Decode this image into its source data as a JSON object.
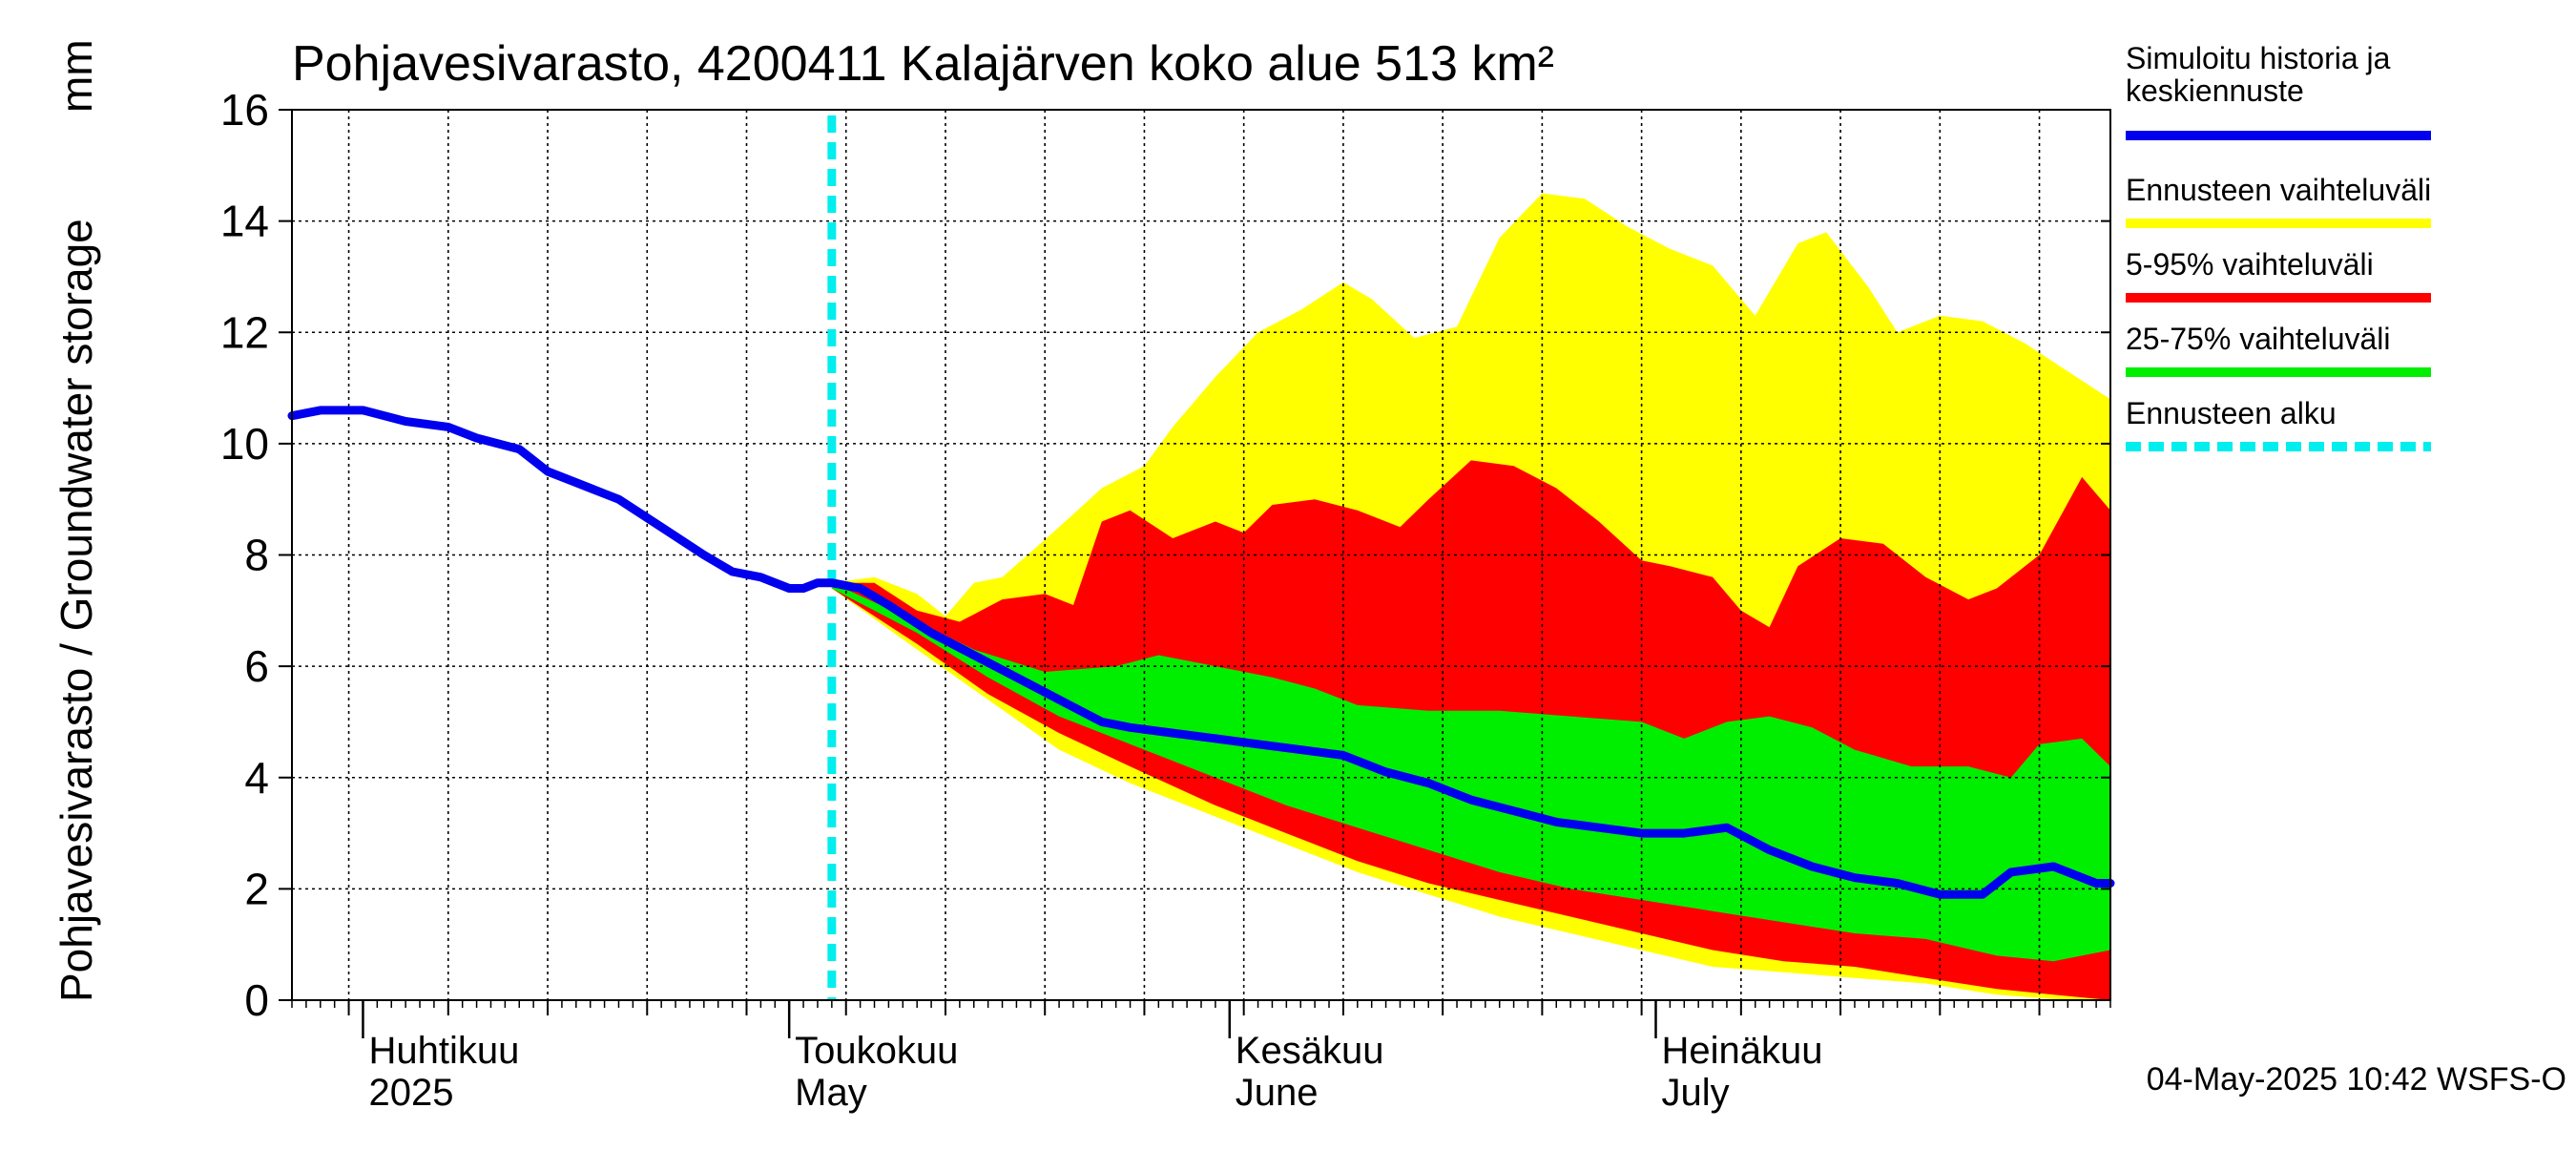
{
  "chart_data": {
    "type": "area",
    "title": "Pohjavesivarasto, 4200411 Kalajärven koko alue 513 km²",
    "ylabel": "Pohjavesivarasto / Groundwater storage",
    "yunit": "mm",
    "xlim": [
      "2025-03-27",
      "2025-08-02"
    ],
    "ylim": [
      0,
      16
    ],
    "yticks": [
      0,
      2,
      4,
      6,
      8,
      10,
      12,
      14,
      16
    ],
    "grid": true,
    "legend_position": "right",
    "month_labels": [
      {
        "date": "2025-04-01",
        "fi": "Huhtikuu",
        "en": "2025"
      },
      {
        "date": "2025-05-01",
        "fi": "Toukokuu",
        "en": "May"
      },
      {
        "date": "2025-06-01",
        "fi": "Kesäkuu",
        "en": "June"
      },
      {
        "date": "2025-07-01",
        "fi": "Heinäkuu",
        "en": "July"
      }
    ],
    "forecast_start": "2025-05-04",
    "timestamp": "04-May-2025 10:42 WSFS-O",
    "legend": [
      {
        "key": "median",
        "label": "Simuloitu historia ja keskiennuste",
        "color": "#0000ee",
        "style": "solid"
      },
      {
        "key": "range",
        "label": "Ennusteen vaihteluväli",
        "color": "#ffff00",
        "style": "solid"
      },
      {
        "key": "p5_95",
        "label": "5-95% vaihteluväli",
        "color": "#ff0000",
        "style": "solid"
      },
      {
        "key": "p25_75",
        "label": "25-75% vaihteluväli",
        "color": "#00ee00",
        "style": "solid"
      },
      {
        "key": "forecast_start",
        "label": "Ennusteen alku",
        "color": "#00eeee",
        "style": "dashed"
      }
    ],
    "bands": {
      "range": {
        "color": "#ffff00",
        "upper": [
          [
            "2025-05-04",
            7.5
          ],
          [
            "2025-05-07",
            7.6
          ],
          [
            "2025-05-10",
            7.3
          ],
          [
            "2025-05-12",
            6.9
          ],
          [
            "2025-05-14",
            7.5
          ],
          [
            "2025-05-16",
            7.6
          ],
          [
            "2025-05-20",
            8.5
          ],
          [
            "2025-05-23",
            9.2
          ],
          [
            "2025-05-26",
            9.6
          ],
          [
            "2025-05-28",
            10.3
          ],
          [
            "2025-05-31",
            11.2
          ],
          [
            "2025-06-03",
            12.0
          ],
          [
            "2025-06-06",
            12.4
          ],
          [
            "2025-06-09",
            12.9
          ],
          [
            "2025-06-11",
            12.6
          ],
          [
            "2025-06-14",
            11.9
          ],
          [
            "2025-06-17",
            12.1
          ],
          [
            "2025-06-20",
            13.7
          ],
          [
            "2025-06-23",
            14.5
          ],
          [
            "2025-06-26",
            14.4
          ],
          [
            "2025-06-29",
            13.9
          ],
          [
            "2025-07-02",
            13.5
          ],
          [
            "2025-07-05",
            13.2
          ],
          [
            "2025-07-08",
            12.3
          ],
          [
            "2025-07-11",
            13.6
          ],
          [
            "2025-07-13",
            13.8
          ],
          [
            "2025-07-16",
            12.8
          ],
          [
            "2025-07-18",
            12.0
          ],
          [
            "2025-07-21",
            12.3
          ],
          [
            "2025-07-24",
            12.2
          ],
          [
            "2025-07-27",
            11.8
          ],
          [
            "2025-07-30",
            11.3
          ],
          [
            "2025-08-02",
            10.8
          ]
        ],
        "lower": [
          [
            "2025-05-04",
            7.4
          ],
          [
            "2025-05-10",
            6.3
          ],
          [
            "2025-05-15",
            5.4
          ],
          [
            "2025-05-20",
            4.5
          ],
          [
            "2025-05-25",
            3.9
          ],
          [
            "2025-05-31",
            3.3
          ],
          [
            "2025-06-05",
            2.8
          ],
          [
            "2025-06-10",
            2.3
          ],
          [
            "2025-06-15",
            1.9
          ],
          [
            "2025-06-20",
            1.5
          ],
          [
            "2025-06-25",
            1.2
          ],
          [
            "2025-06-30",
            0.9
          ],
          [
            "2025-07-05",
            0.6
          ],
          [
            "2025-07-10",
            0.5
          ],
          [
            "2025-07-15",
            0.4
          ],
          [
            "2025-07-20",
            0.3
          ],
          [
            "2025-07-25",
            0.1
          ],
          [
            "2025-07-30",
            0.0
          ],
          [
            "2025-08-02",
            0.0
          ]
        ]
      },
      "p5_95": {
        "color": "#ff0000",
        "upper": [
          [
            "2025-05-04",
            7.5
          ],
          [
            "2025-05-07",
            7.5
          ],
          [
            "2025-05-10",
            7.0
          ],
          [
            "2025-05-13",
            6.8
          ],
          [
            "2025-05-16",
            7.2
          ],
          [
            "2025-05-19",
            7.3
          ],
          [
            "2025-05-21",
            7.1
          ],
          [
            "2025-05-23",
            8.6
          ],
          [
            "2025-05-25",
            8.8
          ],
          [
            "2025-05-28",
            8.3
          ],
          [
            "2025-05-31",
            8.6
          ],
          [
            "2025-06-02",
            8.4
          ],
          [
            "2025-06-04",
            8.9
          ],
          [
            "2025-06-07",
            9.0
          ],
          [
            "2025-06-10",
            8.8
          ],
          [
            "2025-06-13",
            8.5
          ],
          [
            "2025-06-15",
            9.0
          ],
          [
            "2025-06-18",
            9.7
          ],
          [
            "2025-06-21",
            9.6
          ],
          [
            "2025-06-24",
            9.2
          ],
          [
            "2025-06-27",
            8.6
          ],
          [
            "2025-06-30",
            7.9
          ],
          [
            "2025-07-02",
            7.8
          ],
          [
            "2025-07-05",
            7.6
          ],
          [
            "2025-07-07",
            7.0
          ],
          [
            "2025-07-09",
            6.7
          ],
          [
            "2025-07-11",
            7.8
          ],
          [
            "2025-07-14",
            8.3
          ],
          [
            "2025-07-17",
            8.2
          ],
          [
            "2025-07-20",
            7.6
          ],
          [
            "2025-07-23",
            7.2
          ],
          [
            "2025-07-25",
            7.4
          ],
          [
            "2025-07-28",
            8.0
          ],
          [
            "2025-07-31",
            9.4
          ],
          [
            "2025-08-02",
            8.8
          ]
        ],
        "lower": [
          [
            "2025-05-04",
            7.4
          ],
          [
            "2025-05-10",
            6.4
          ],
          [
            "2025-05-15",
            5.5
          ],
          [
            "2025-05-20",
            4.8
          ],
          [
            "2025-05-25",
            4.2
          ],
          [
            "2025-05-31",
            3.5
          ],
          [
            "2025-06-05",
            3.0
          ],
          [
            "2025-06-10",
            2.5
          ],
          [
            "2025-06-15",
            2.1
          ],
          [
            "2025-06-20",
            1.8
          ],
          [
            "2025-06-25",
            1.5
          ],
          [
            "2025-06-30",
            1.2
          ],
          [
            "2025-07-05",
            0.9
          ],
          [
            "2025-07-10",
            0.7
          ],
          [
            "2025-07-15",
            0.6
          ],
          [
            "2025-07-20",
            0.4
          ],
          [
            "2025-07-25",
            0.2
          ],
          [
            "2025-07-29",
            0.1
          ],
          [
            "2025-08-02",
            0.0
          ]
        ]
      },
      "p25_75": {
        "color": "#00ee00",
        "upper": [
          [
            "2025-05-04",
            7.5
          ],
          [
            "2025-05-10",
            6.8
          ],
          [
            "2025-05-14",
            6.3
          ],
          [
            "2025-05-19",
            5.9
          ],
          [
            "2025-05-24",
            6.0
          ],
          [
            "2025-05-27",
            6.2
          ],
          [
            "2025-05-31",
            6.0
          ],
          [
            "2025-06-04",
            5.8
          ],
          [
            "2025-06-07",
            5.6
          ],
          [
            "2025-06-10",
            5.3
          ],
          [
            "2025-06-15",
            5.2
          ],
          [
            "2025-06-20",
            5.2
          ],
          [
            "2025-06-25",
            5.1
          ],
          [
            "2025-06-30",
            5.0
          ],
          [
            "2025-07-03",
            4.7
          ],
          [
            "2025-07-06",
            5.0
          ],
          [
            "2025-07-09",
            5.1
          ],
          [
            "2025-07-12",
            4.9
          ],
          [
            "2025-07-15",
            4.5
          ],
          [
            "2025-07-19",
            4.2
          ],
          [
            "2025-07-23",
            4.2
          ],
          [
            "2025-07-26",
            4.0
          ],
          [
            "2025-07-28",
            4.6
          ],
          [
            "2025-07-31",
            4.7
          ],
          [
            "2025-08-02",
            4.2
          ]
        ],
        "lower": [
          [
            "2025-05-04",
            7.4
          ],
          [
            "2025-05-10",
            6.6
          ],
          [
            "2025-05-15",
            5.8
          ],
          [
            "2025-05-20",
            5.1
          ],
          [
            "2025-05-25",
            4.6
          ],
          [
            "2025-05-31",
            4.0
          ],
          [
            "2025-06-05",
            3.5
          ],
          [
            "2025-06-10",
            3.1
          ],
          [
            "2025-06-15",
            2.7
          ],
          [
            "2025-06-20",
            2.3
          ],
          [
            "2025-06-25",
            2.0
          ],
          [
            "2025-06-30",
            1.8
          ],
          [
            "2025-07-05",
            1.6
          ],
          [
            "2025-07-10",
            1.4
          ],
          [
            "2025-07-15",
            1.2
          ],
          [
            "2025-07-20",
            1.1
          ],
          [
            "2025-07-25",
            0.8
          ],
          [
            "2025-07-29",
            0.7
          ],
          [
            "2025-08-02",
            0.9
          ]
        ]
      }
    },
    "median": [
      [
        "2025-03-27",
        10.5
      ],
      [
        "2025-03-29",
        10.6
      ],
      [
        "2025-04-01",
        10.6
      ],
      [
        "2025-04-04",
        10.4
      ],
      [
        "2025-04-07",
        10.3
      ],
      [
        "2025-04-09",
        10.1
      ],
      [
        "2025-04-12",
        9.9
      ],
      [
        "2025-04-14",
        9.5
      ],
      [
        "2025-04-17",
        9.2
      ],
      [
        "2025-04-19",
        9.0
      ],
      [
        "2025-04-22",
        8.5
      ],
      [
        "2025-04-25",
        8.0
      ],
      [
        "2025-04-27",
        7.7
      ],
      [
        "2025-04-29",
        7.6
      ],
      [
        "2025-05-01",
        7.4
      ],
      [
        "2025-05-02",
        7.4
      ],
      [
        "2025-05-03",
        7.5
      ],
      [
        "2025-05-04",
        7.5
      ],
      [
        "2025-05-06",
        7.4
      ],
      [
        "2025-05-08",
        7.1
      ],
      [
        "2025-05-11",
        6.6
      ],
      [
        "2025-05-14",
        6.2
      ],
      [
        "2025-05-17",
        5.8
      ],
      [
        "2025-05-20",
        5.4
      ],
      [
        "2025-05-23",
        5.0
      ],
      [
        "2025-05-25",
        4.9
      ],
      [
        "2025-05-28",
        4.8
      ],
      [
        "2025-05-31",
        4.7
      ],
      [
        "2025-06-03",
        4.6
      ],
      [
        "2025-06-06",
        4.5
      ],
      [
        "2025-06-09",
        4.4
      ],
      [
        "2025-06-12",
        4.1
      ],
      [
        "2025-06-15",
        3.9
      ],
      [
        "2025-06-18",
        3.6
      ],
      [
        "2025-06-21",
        3.4
      ],
      [
        "2025-06-24",
        3.2
      ],
      [
        "2025-06-27",
        3.1
      ],
      [
        "2025-06-30",
        3.0
      ],
      [
        "2025-07-03",
        3.0
      ],
      [
        "2025-07-06",
        3.1
      ],
      [
        "2025-07-09",
        2.7
      ],
      [
        "2025-07-12",
        2.4
      ],
      [
        "2025-07-15",
        2.2
      ],
      [
        "2025-07-18",
        2.1
      ],
      [
        "2025-07-21",
        1.9
      ],
      [
        "2025-07-24",
        1.9
      ],
      [
        "2025-07-26",
        2.3
      ],
      [
        "2025-07-29",
        2.4
      ],
      [
        "2025-08-01",
        2.1
      ],
      [
        "2025-08-02",
        2.1
      ]
    ]
  }
}
